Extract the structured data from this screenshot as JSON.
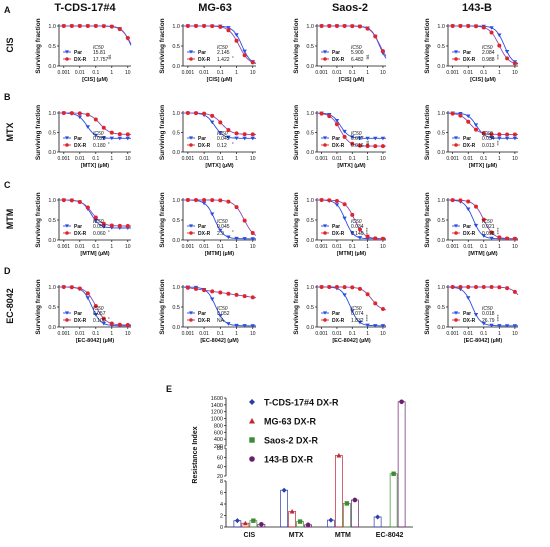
{
  "column_titles": [
    "T-CDS-17#4",
    "MG-63",
    "Saos-2",
    "143-B"
  ],
  "row_panels": [
    {
      "letter": "A",
      "drug": "CIS",
      "xlabel": "[CIS] (µM)",
      "xticks": [
        "0.001",
        "0.01",
        "0.1",
        "1",
        "10"
      ]
    },
    {
      "letter": "B",
      "drug": "MTX",
      "xlabel": "[MTX] (µM)",
      "xticks": [
        "0.001",
        "0.01",
        "0.1",
        "1",
        "10"
      ]
    },
    {
      "letter": "C",
      "drug": "MTM",
      "xlabel": "[MTM] (µM)",
      "xticks": [
        "0.001",
        "0.01",
        "0.1",
        "1",
        "10"
      ]
    },
    {
      "letter": "D",
      "drug": "EC-8042",
      "xlabel": "[EC-8042] (µM)",
      "xticks": [
        "0.001",
        "0.01",
        "0.1",
        "1",
        "10"
      ]
    }
  ],
  "ylabel": "Surviving fraction",
  "yticks": [
    "0.0",
    "0.5",
    "1.0"
  ],
  "ic50_label": "IC50",
  "series_names": [
    "Par",
    "DX-R"
  ],
  "colors": {
    "par": "#2b4de0",
    "dxr": "#e0252a",
    "fit": "#8a49b8"
  },
  "chart_data": [
    {
      "type": "line",
      "title": "T-CDS-17#4",
      "row": "CIS",
      "ic50": [
        "15.81",
        "17.757"
      ],
      "sig": "ns",
      "asym": [
        [
          0.05,
          0.05
        ],
        [
          0.05,
          0.05
        ]
      ],
      "curve_ic50": [
        [
          15.81,
          17.757
        ]
      ]
    },
    {
      "type": "line",
      "title": "MG-63",
      "row": "CIS",
      "ic50": [
        "2.145",
        "1.422"
      ],
      "sig": "*",
      "asym": [
        [
          0.02,
          0.02
        ]
      ]
    },
    {
      "type": "line",
      "title": "Saos-2",
      "row": "CIS",
      "ic50": [
        "5.900",
        "6.482"
      ],
      "sig": "ns"
    },
    {
      "type": "line",
      "title": "143-B",
      "row": "CIS",
      "ic50": [
        "2.084",
        "0.988"
      ],
      "sig": "***"
    },
    {
      "type": "line",
      "title": "T-CDS-17#4",
      "row": "MTX",
      "ic50": [
        "0.028",
        "0.180"
      ],
      "sig": "*"
    },
    {
      "type": "line",
      "title": "MG-63",
      "row": "MTX",
      "ic50": [
        "0.045",
        "0.12"
      ],
      "sig": "*"
    },
    {
      "type": "line",
      "title": "Saos-2",
      "row": "MTX",
      "ic50": [
        "0.017",
        "0.016"
      ],
      "sig": "ns"
    },
    {
      "type": "line",
      "title": "143-B",
      "row": "MTX",
      "ic50": [
        "0.034",
        "0.013"
      ],
      "sig": "***"
    },
    {
      "type": "line",
      "title": "T-CDS-17#4",
      "row": "MTM",
      "ic50": [
        "0.051",
        "0.060"
      ],
      "sig": "*"
    },
    {
      "type": "line",
      "title": "MG-63",
      "row": "MTM",
      "ic50": [
        "0.045",
        "2.9"
      ],
      "sig": "*"
    },
    {
      "type": "line",
      "title": "Saos-2",
      "row": "MTM",
      "ic50": [
        "0.034",
        "0.140"
      ],
      "sig": "****"
    },
    {
      "type": "line",
      "title": "143-B",
      "row": "MTM",
      "ic50": [
        "0.021",
        "0.098"
      ],
      "sig": "****"
    },
    {
      "type": "line",
      "title": "T-CDS-17#4",
      "row": "EC-8042",
      "ic50": [
        "0.057",
        "0.100"
      ],
      "sig": "*"
    },
    {
      "type": "line",
      "title": "MG-63",
      "row": "EC-8042",
      "ic50": [
        "0.052",
        "NA"
      ],
      "sig": ""
    },
    {
      "type": "line",
      "title": "Saos-2",
      "row": "EC-8042",
      "ic50": [
        "0.074",
        "1.832"
      ],
      "sig": "****"
    },
    {
      "type": "line",
      "title": "143-B",
      "row": "EC-8042",
      "ic50": [
        "0.018",
        "26.79"
      ],
      "sig": "****"
    },
    {
      "type": "bar",
      "title": "E",
      "ylabel": "Resistance Index",
      "categories": [
        "CIS",
        "MTX",
        "MTM",
        "EC-8042"
      ],
      "yticks_low": [
        "0",
        "2",
        "4",
        "6",
        "8"
      ],
      "yticks_high": [
        "20",
        "40",
        "60",
        "80",
        "200",
        "400",
        "600",
        "800",
        "1000",
        "1200",
        "1400",
        "1600"
      ],
      "series": [
        {
          "name": "T-CDS-17#4 DX-R",
          "color": "#2b3fa8",
          "marker": "diamond",
          "values": [
            1.1,
            6.4,
            1.2,
            1.75
          ]
        },
        {
          "name": "MG-63 DX-R",
          "color": "#c0262e",
          "marker": "triangle",
          "values": [
            0.66,
            2.7,
            64,
            null
          ]
        },
        {
          "name": "Saos-2 DX-R",
          "color": "#3d8a35",
          "marker": "square",
          "values": [
            1.1,
            0.94,
            4.1,
            24.8
          ]
        },
        {
          "name": "143-B DX-R",
          "color": "#6a1f6e",
          "marker": "circle",
          "values": [
            0.47,
            0.38,
            4.7,
            1490
          ]
        }
      ]
    }
  ]
}
